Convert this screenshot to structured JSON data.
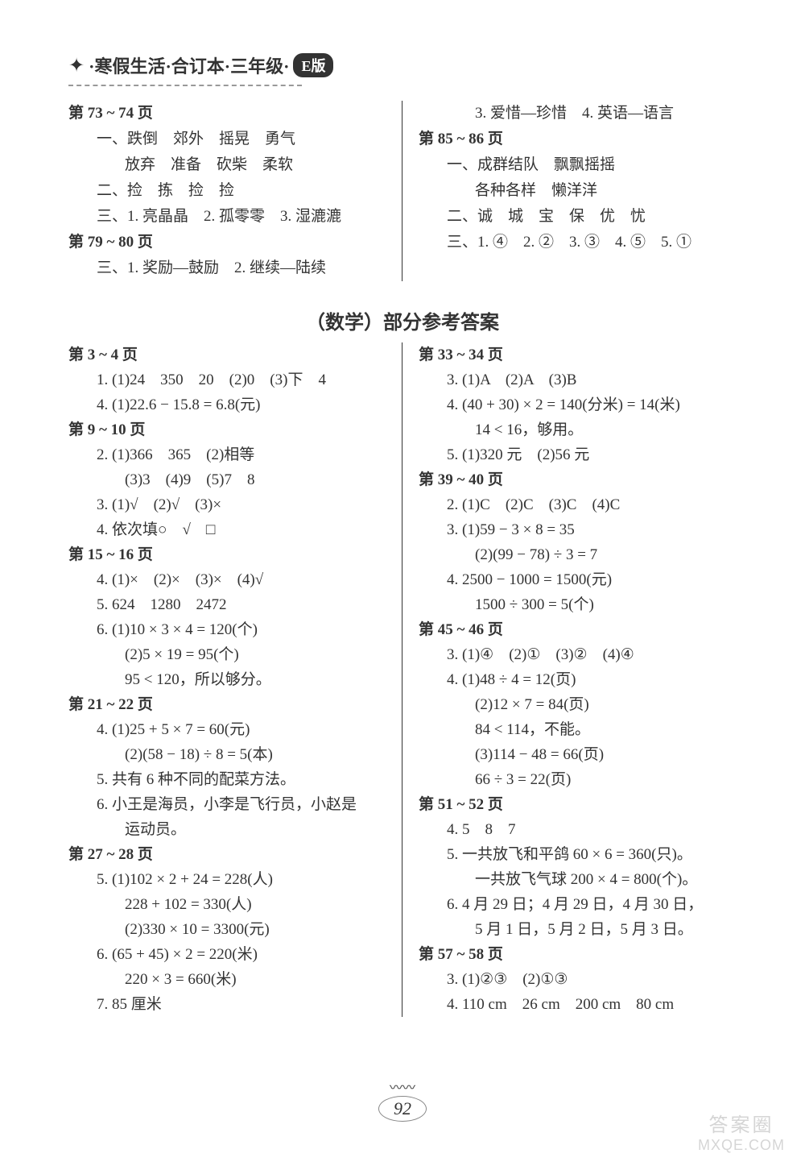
{
  "header": {
    "text": "·寒假生活·合订本·三年级·",
    "badge": "E版"
  },
  "topLeft": {
    "p73": "第 73 ~ 74 页",
    "l1": "一、跌倒　郊外　摇晃　勇气",
    "l2": "放弃　准备　砍柴　柔软",
    "l3": "二、捡　拣　捡　捡",
    "l4": "三、1. 亮晶晶　2. 孤零零　3. 湿漉漉",
    "p79": "第 79 ~ 80 页",
    "l5": "三、1. 奖励—鼓励　2. 继续—陆续"
  },
  "topRight": {
    "l1": "3. 爱惜—珍惜　4. 英语—语言",
    "p85": "第 85 ~ 86 页",
    "l2": "一、成群结队　飘飘摇摇",
    "l3": "各种各样　懒洋洋",
    "l4": "二、诚　城　宝　保　优　忧",
    "l5": "三、1. ④　2. ②　3. ③　4. ⑤　5. ①"
  },
  "sectionTitle": "（数学）部分参考答案",
  "mathLeft": {
    "p3": "第 3 ~ 4 页",
    "p3l1": "1. (1)24　350　20　(2)0　(3)下　4",
    "p3l2": "4. (1)22.6 − 15.8 = 6.8(元)",
    "p9": "第 9 ~ 10 页",
    "p9l1": "2. (1)366　365　(2)相等",
    "p9l2": "(3)3　(4)9　(5)7　8",
    "p9l3": "3. (1)√　(2)√　(3)×",
    "p9l4": "4. 依次填○　√　□",
    "p15": "第 15 ~ 16 页",
    "p15l1": "4. (1)×　(2)×　(3)×　(4)√",
    "p15l2": "5. 624　1280　2472",
    "p15l3": "6. (1)10 × 3 × 4 = 120(个)",
    "p15l4": "(2)5 × 19 = 95(个)",
    "p15l5": "95 < 120，所以够分。",
    "p21": "第 21 ~ 22 页",
    "p21l1": "4. (1)25 + 5 × 7 = 60(元)",
    "p21l2": "(2)(58 − 18) ÷ 8 = 5(本)",
    "p21l3": "5. 共有 6 种不同的配菜方法。",
    "p21l4": "6. 小王是海员，小李是飞行员，小赵是",
    "p21l5": "运动员。",
    "p27": "第 27 ~ 28 页",
    "p27l1": "5. (1)102 × 2 + 24 = 228(人)",
    "p27l2": "228 + 102 = 330(人)",
    "p27l3": "(2)330 × 10 = 3300(元)",
    "p27l4": "6. (65 + 45) × 2 = 220(米)",
    "p27l5": "220 × 3 = 660(米)",
    "p27l6": "7. 85 厘米"
  },
  "mathRight": {
    "p33": "第 33 ~ 34 页",
    "p33l1": "3. (1)A　(2)A　(3)B",
    "p33l2": "4. (40 + 30) × 2 = 140(分米) = 14(米)",
    "p33l3": "14 < 16，够用。",
    "p33l4": "5. (1)320 元　(2)56 元",
    "p39": "第 39 ~ 40 页",
    "p39l1": "2. (1)C　(2)C　(3)C　(4)C",
    "p39l2": "3. (1)59 − 3 × 8 = 35",
    "p39l3": "(2)(99 − 78) ÷ 3 = 7",
    "p39l4": "4. 2500 − 1000 = 1500(元)",
    "p39l5": "1500 ÷ 300 = 5(个)",
    "p45": "第 45 ~ 46 页",
    "p45l1": "3. (1)④　(2)①　(3)②　(4)④",
    "p45l2": "4. (1)48 ÷ 4 = 12(页)",
    "p45l3": "(2)12 × 7 = 84(页)",
    "p45l4": "84 < 114，不能。",
    "p45l5": "(3)114 − 48 = 66(页)",
    "p45l6": "66 ÷ 3 = 22(页)",
    "p51": "第 51 ~ 52 页",
    "p51l1": "4. 5　8　7",
    "p51l2": "5. 一共放飞和平鸽 60 × 6 = 360(只)。",
    "p51l3": "一共放飞气球 200 × 4 = 800(个)。",
    "p51l4": "6. 4 月 29 日；4 月 29 日，4 月 30 日，",
    "p51l5": "5 月 1 日，5 月 2 日，5 月 3 日。",
    "p57": "第 57 ~ 58 页",
    "p57l1": "3. (1)②③　(2)①③",
    "p57l2": "4. 110 cm　26 cm　200 cm　80 cm"
  },
  "pageNum": "92",
  "watermark": {
    "top": "答案圈",
    "bottom": "MXQE.COM"
  }
}
